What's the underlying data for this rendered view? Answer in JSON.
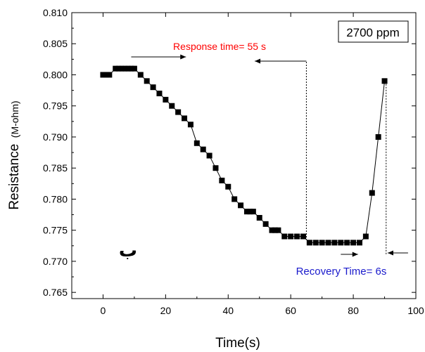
{
  "chart_data": {
    "type": "scatter",
    "xlabel": "Time(s)",
    "ylabel_main": "Resistance",
    "ylabel_unit": "(M-ohm)",
    "xlim": [
      -10,
      100
    ],
    "ylim": [
      0.764,
      0.81
    ],
    "x_ticks": [
      0,
      20,
      40,
      60,
      80,
      100
    ],
    "y_ticks": [
      0.765,
      0.77,
      0.775,
      0.78,
      0.785,
      0.79,
      0.795,
      0.8,
      0.805,
      0.81
    ],
    "y_tick_labels": [
      "0.765",
      "0.770",
      "0.775",
      "0.780",
      "0.785",
      "0.790",
      "0.795",
      "0.800",
      "0.805",
      "0.810"
    ],
    "grid": false,
    "marker": "square",
    "series": [
      {
        "x": [
          0,
          1,
          2,
          4,
          5,
          6,
          7,
          8,
          9,
          10,
          12,
          14,
          16,
          18,
          20,
          22,
          24,
          26,
          28,
          30,
          32,
          34,
          36,
          38,
          40,
          42,
          44,
          46,
          47,
          48,
          50,
          52,
          54,
          55,
          56,
          58,
          60,
          62,
          64,
          66,
          68,
          70,
          72,
          74,
          76,
          78,
          80,
          82,
          84,
          86,
          88,
          90
        ],
        "y": [
          0.8,
          0.8,
          0.8,
          0.801,
          0.801,
          0.801,
          0.801,
          0.801,
          0.801,
          0.801,
          0.8,
          0.799,
          0.798,
          0.797,
          0.796,
          0.795,
          0.794,
          0.793,
          0.792,
          0.789,
          0.788,
          0.787,
          0.785,
          0.783,
          0.782,
          0.78,
          0.779,
          0.778,
          0.778,
          0.778,
          0.777,
          0.776,
          0.775,
          0.775,
          0.775,
          0.774,
          0.774,
          0.774,
          0.774,
          0.773,
          0.773,
          0.773,
          0.773,
          0.773,
          0.773,
          0.773,
          0.773,
          0.773,
          0.774,
          0.781,
          0.79,
          0.799
        ]
      }
    ],
    "annotations": {
      "legend_box": "2700 ppm",
      "response_text": "Response time= 55 s",
      "response_color": "#ff0000",
      "recovery_text": "Recovery Time= 6s",
      "recovery_color": "#1a1acc",
      "panel_label": "ب",
      "response_line_x": 65,
      "recovery_line_x": 90.5
    }
  }
}
